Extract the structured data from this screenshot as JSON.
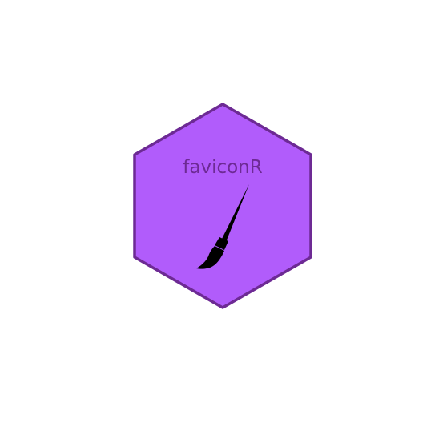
{
  "logo": {
    "title": "faviconR",
    "icon": "paintbrush-icon",
    "colors": {
      "background": "#ffffff",
      "hex_fill": "#b15cfb",
      "hex_stroke": "#6d2a94",
      "title_text": "#6d2a94",
      "brush": "#000000"
    }
  }
}
